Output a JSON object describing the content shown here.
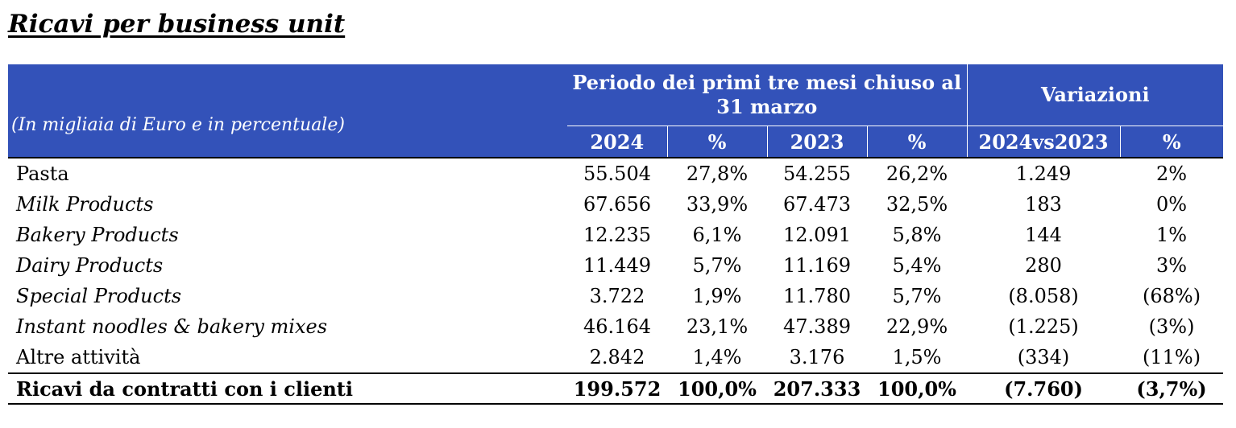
{
  "title": "Ricavi per business unit",
  "table": {
    "unit_label": "(In migliaia di Euro e in percentuale)",
    "period_header": "Periodo dei primi tre mesi chiuso al 31 marzo",
    "variation_header": "Variazioni",
    "columns": [
      "2024",
      "%",
      "2023",
      "%",
      "2024vs2023",
      "%"
    ],
    "rows": [
      {
        "label": "Pasta",
        "italic": false,
        "values": [
          "55.504",
          "27,8%",
          "54.255",
          "26,2%",
          "1.249",
          "2%"
        ]
      },
      {
        "label": "Milk Products",
        "italic": true,
        "values": [
          "67.656",
          "33,9%",
          "67.473",
          "32,5%",
          "183",
          "0%"
        ]
      },
      {
        "label": "Bakery Products",
        "italic": true,
        "values": [
          "12.235",
          "6,1%",
          "12.091",
          "5,8%",
          "144",
          "1%"
        ]
      },
      {
        "label": "Dairy Products",
        "italic": true,
        "values": [
          "11.449",
          "5,7%",
          "11.169",
          "5,4%",
          "280",
          "3%"
        ]
      },
      {
        "label": "Special Products",
        "italic": true,
        "values": [
          "3.722",
          "1,9%",
          "11.780",
          "5,7%",
          "(8.058)",
          "(68%)"
        ]
      },
      {
        "label": "Instant noodles & bakery mixes",
        "italic": true,
        "values": [
          "46.164",
          "23,1%",
          "47.389",
          "22,9%",
          "(1.225)",
          "(3%)"
        ]
      },
      {
        "label": "Altre attività",
        "italic": false,
        "values": [
          "2.842",
          "1,4%",
          "3.176",
          "1,5%",
          "(334)",
          "(11%)"
        ]
      }
    ],
    "total": {
      "label": "Ricavi da contratti con i clienti",
      "values": [
        "199.572",
        "100,0%",
        "207.333",
        "100,0%",
        "(7.760)",
        "(3,7%)"
      ]
    }
  }
}
